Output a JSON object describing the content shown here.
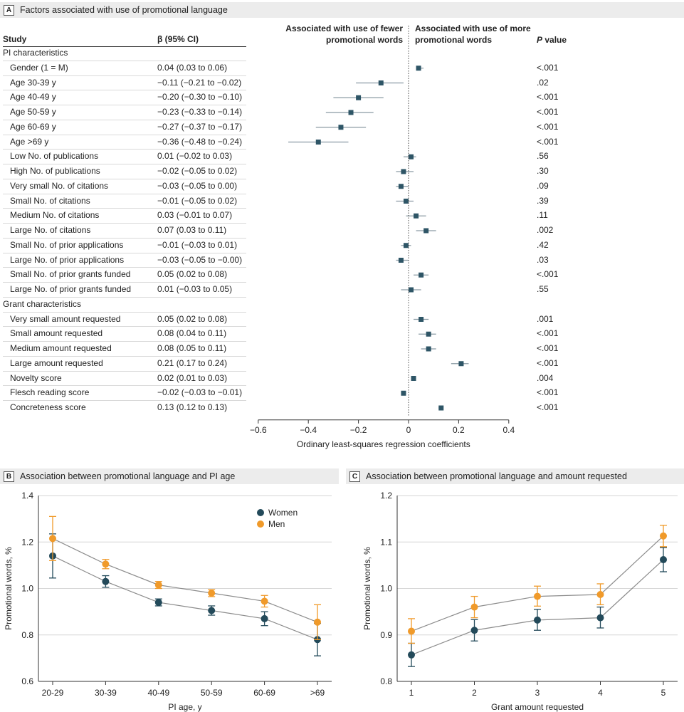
{
  "panel_a": {
    "letter": "A",
    "title": "Factors associated with use of promotional language",
    "col_study": "Study",
    "col_beta": "β (95% CI)",
    "col_p": "P value",
    "col_p_suffix": " value",
    "col_p_italic": "P",
    "left_header": [
      "Associated with use of fewer",
      "promotional words"
    ],
    "right_header": [
      "Associated with use of more",
      "promotional words"
    ],
    "groups": [
      {
        "label": "PI characteristics",
        "rows": [
          {
            "name": "Gender (1 = M)",
            "ci": "0.04 (0.03 to 0.06)",
            "p": "<.001",
            "est": 0.04,
            "lo": 0.03,
            "hi": 0.06
          },
          {
            "name": "Age 30-39 y",
            "ci": "−0.11 (−0.21 to −0.02)",
            "p": ".02",
            "est": -0.11,
            "lo": -0.21,
            "hi": -0.02
          },
          {
            "name": "Age 40-49 y",
            "ci": "−0.20 (−0.30 to −0.10)",
            "p": "<.001",
            "est": -0.2,
            "lo": -0.3,
            "hi": -0.1
          },
          {
            "name": "Age 50-59 y",
            "ci": "−0.23 (−0.33 to −0.14)",
            "p": "<.001",
            "est": -0.23,
            "lo": -0.33,
            "hi": -0.14
          },
          {
            "name": "Age 60-69 y",
            "ci": "−0.27 (−0.37 to −0.17)",
            "p": "<.001",
            "est": -0.27,
            "lo": -0.37,
            "hi": -0.17
          },
          {
            "name": "Age >69 y",
            "ci": "−0.36 (−0.48 to −0.24)",
            "p": "<.001",
            "est": -0.36,
            "lo": -0.48,
            "hi": -0.24
          },
          {
            "name": "Low No. of publications",
            "ci": "0.01 (−0.02 to 0.03)",
            "p": ".56",
            "est": 0.01,
            "lo": -0.02,
            "hi": 0.03
          },
          {
            "name": "High No. of publications",
            "ci": "−0.02 (−0.05 to 0.02)",
            "p": ".30",
            "est": -0.02,
            "lo": -0.05,
            "hi": 0.02
          },
          {
            "name": "Very small No. of citations",
            "ci": "−0.03 (−0.05 to 0.00)",
            "p": ".09",
            "est": -0.03,
            "lo": -0.05,
            "hi": 0.0
          },
          {
            "name": "Small No. of citations",
            "ci": "−0.01 (−0.05 to 0.02)",
            "p": ".39",
            "est": -0.01,
            "lo": -0.05,
            "hi": 0.02
          },
          {
            "name": "Medium No. of citations",
            "ci": "0.03 (−0.01 to 0.07)",
            "p": ".11",
            "est": 0.03,
            "lo": -0.01,
            "hi": 0.07
          },
          {
            "name": "Large No. of citations",
            "ci": "0.07 (0.03 to 0.11)",
            "p": ".002",
            "est": 0.07,
            "lo": 0.03,
            "hi": 0.11
          },
          {
            "name": "Small No. of prior applications",
            "ci": "−0.01 (−0.03 to 0.01)",
            "p": ".42",
            "est": -0.01,
            "lo": -0.03,
            "hi": 0.01
          },
          {
            "name": "Large No. of prior applications",
            "ci": "−0.03 (−0.05 to −0.00)",
            "p": ".03",
            "est": -0.03,
            "lo": -0.05,
            "hi": 0.0
          },
          {
            "name": "Small No. of prior grants funded",
            "ci": "0.05 (0.02 to 0.08)",
            "p": "<.001",
            "est": 0.05,
            "lo": 0.02,
            "hi": 0.08
          },
          {
            "name": "Large No. of prior grants funded",
            "ci": "0.01 (−0.03 to 0.05)",
            "p": ".55",
            "est": 0.01,
            "lo": -0.03,
            "hi": 0.05
          }
        ]
      },
      {
        "label": "Grant characteristics",
        "rows": [
          {
            "name": "Very small amount requested",
            "ci": "0.05 (0.02 to 0.08)",
            "p": ".001",
            "est": 0.05,
            "lo": 0.02,
            "hi": 0.08
          },
          {
            "name": "Small amount requested",
            "ci": "0.08 (0.04 to 0.11)",
            "p": "<.001",
            "est": 0.08,
            "lo": 0.04,
            "hi": 0.11
          },
          {
            "name": "Medium amount requested",
            "ci": "0.08 (0.05 to 0.11)",
            "p": "<.001",
            "est": 0.08,
            "lo": 0.05,
            "hi": 0.11
          },
          {
            "name": "Large amount requested",
            "ci": "0.21 (0.17 to 0.24)",
            "p": "<.001",
            "est": 0.21,
            "lo": 0.17,
            "hi": 0.24
          },
          {
            "name": "Novelty score",
            "ci": "0.02 (0.01 to 0.03)",
            "p": ".004",
            "est": 0.02,
            "lo": 0.01,
            "hi": 0.03
          },
          {
            "name": "Flesch reading score",
            "ci": "−0.02 (−0.03 to −0.01)",
            "p": "<.001",
            "est": -0.02,
            "lo": -0.03,
            "hi": -0.01
          },
          {
            "name": "Concreteness score",
            "ci": "0.13 (0.12 to 0.13)",
            "p": "<.001",
            "est": 0.13,
            "lo": 0.12,
            "hi": 0.13
          }
        ]
      }
    ],
    "xaxis_label": "Ordinary least-squares regression coefficients",
    "xticks": [
      "−0.6",
      "−0.4",
      "−0.2",
      "0",
      "0.2",
      "0.4"
    ],
    "xtick_values": [
      -0.6,
      -0.4,
      -0.2,
      0,
      0.2,
      0.4
    ]
  },
  "panel_b": {
    "letter": "B",
    "title": "Association between promotional language and PI age"
  },
  "panel_c": {
    "letter": "C",
    "title": "Association between promotional language and amount requested"
  },
  "chart_data": [
    {
      "type": "forest",
      "title": "Factors associated with use of promotional language",
      "xlabel": "Ordinary least-squares regression coefficients",
      "xlim": [
        -0.6,
        0.4
      ]
    },
    {
      "type": "line",
      "title": "Association between promotional language and PI age",
      "xlabel": "PI age, y",
      "ylabel": "Promotional words, %",
      "categories": [
        "20-29",
        "30-39",
        "40-49",
        "50-59",
        "60-69",
        ">69"
      ],
      "ylim": [
        0.6,
        1.4
      ],
      "yticks": [
        "0.6",
        "0.8",
        "1.0",
        "1.2",
        "1.4"
      ],
      "ytick_values": [
        0.6,
        0.8,
        1.0,
        1.2,
        1.4
      ],
      "series": [
        {
          "name": "Women",
          "color": "#234a5a",
          "values": [
            1.14,
            1.03,
            0.94,
            0.905,
            0.87,
            0.78
          ],
          "lo": [
            1.045,
            1.005,
            0.925,
            0.885,
            0.84,
            0.71
          ],
          "hi": [
            1.235,
            1.055,
            0.955,
            0.925,
            0.9,
            0.85
          ]
        },
        {
          "name": "Men",
          "color": "#f09a2a",
          "values": [
            1.215,
            1.105,
            1.015,
            0.98,
            0.945,
            0.855
          ],
          "lo": [
            1.12,
            1.085,
            1.0,
            0.965,
            0.92,
            0.78
          ],
          "hi": [
            1.31,
            1.125,
            1.03,
            0.995,
            0.97,
            0.93
          ]
        }
      ],
      "legend": "top-right"
    },
    {
      "type": "line",
      "title": "Association between promotional language and amount requested",
      "xlabel": "Grant amount requested",
      "ylabel": "Promotional words, %",
      "categories": [
        "1",
        "2",
        "3",
        "4",
        "5"
      ],
      "ylim": [
        0.8,
        1.2
      ],
      "yticks": [
        "0.8",
        "0.9",
        "1.0",
        "1.1",
        "1.2"
      ],
      "ytick_values": [
        0.8,
        0.9,
        1.0,
        1.1,
        1.2
      ],
      "series": [
        {
          "name": "Women",
          "color": "#234a5a",
          "values": [
            0.857,
            0.91,
            0.932,
            0.937,
            1.062
          ],
          "lo": [
            0.832,
            0.887,
            0.91,
            0.915,
            1.036
          ],
          "hi": [
            0.882,
            0.933,
            0.955,
            0.96,
            1.088
          ]
        },
        {
          "name": "Men",
          "color": "#f09a2a",
          "values": [
            0.908,
            0.96,
            0.983,
            0.987,
            1.113
          ],
          "lo": [
            0.882,
            0.937,
            0.962,
            0.965,
            1.09
          ],
          "hi": [
            0.935,
            0.983,
            1.005,
            1.01,
            1.136
          ]
        }
      ]
    }
  ]
}
